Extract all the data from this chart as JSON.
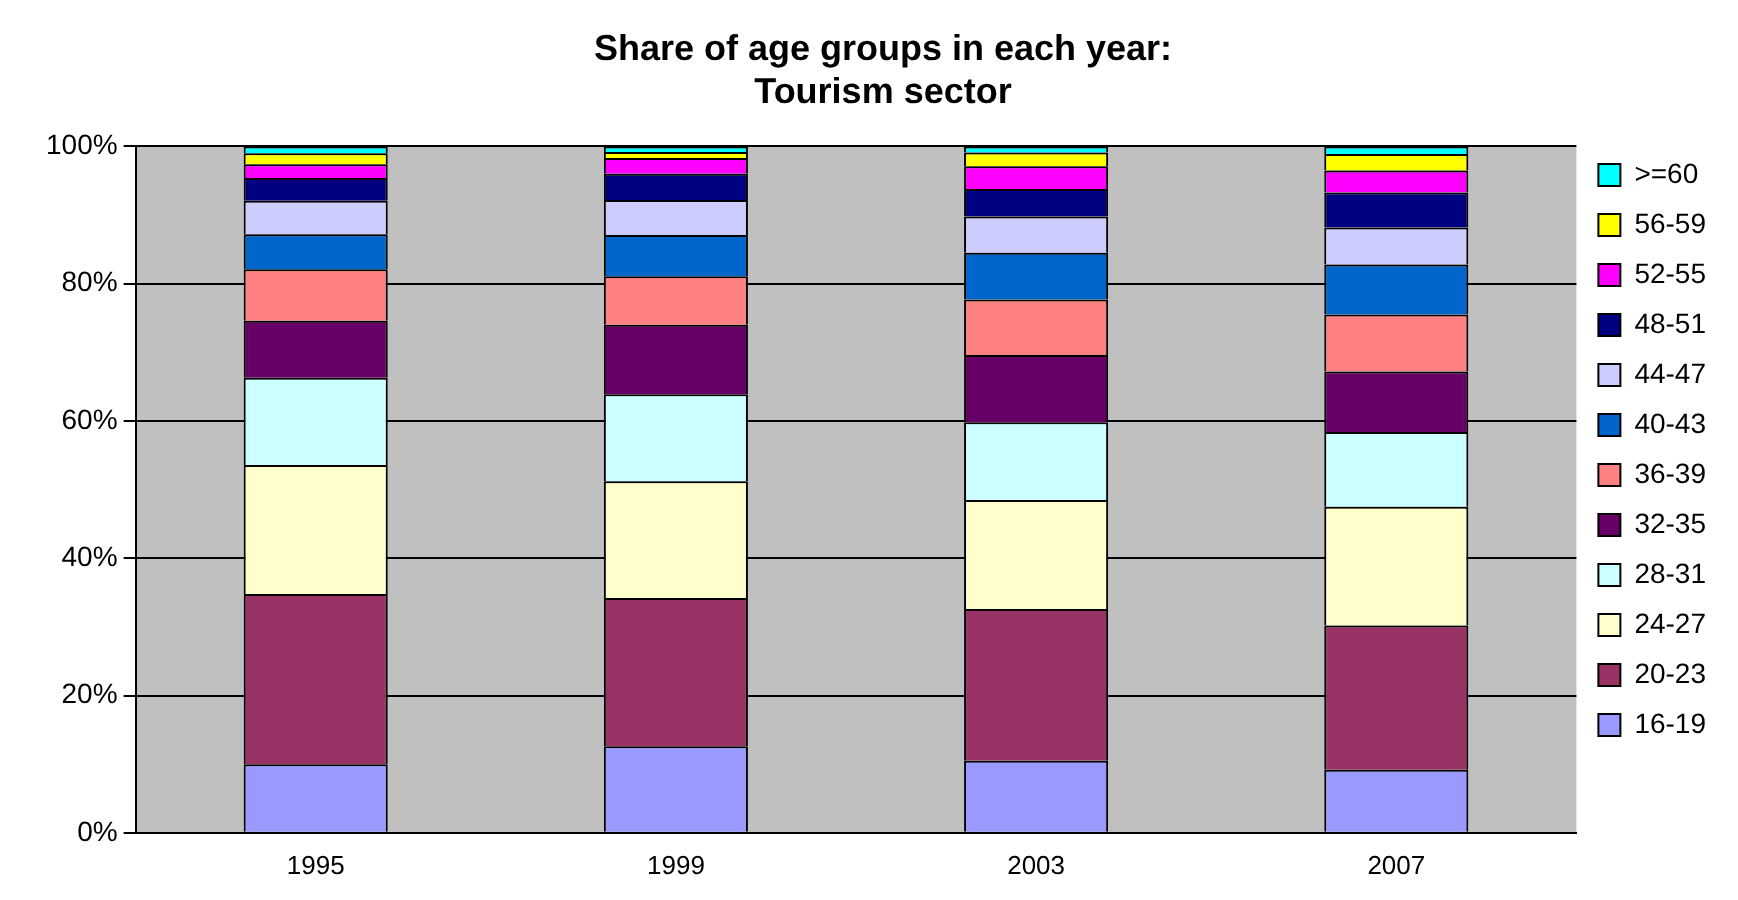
{
  "chart_data": {
    "type": "bar",
    "title": "Share of age groups in each year:\nTourism sector",
    "categories": [
      "1995",
      "1999",
      "2003",
      "2007"
    ],
    "stacked": true,
    "ylim": [
      0,
      100
    ],
    "yticks": [
      {
        "value": 0,
        "label": "0%"
      },
      {
        "value": 20,
        "label": "20%"
      },
      {
        "value": 40,
        "label": "40%"
      },
      {
        "value": 60,
        "label": "60%"
      },
      {
        "value": 80,
        "label": "80%"
      },
      {
        "value": 100,
        "label": "100%"
      }
    ],
    "grid": "y",
    "legend": "right",
    "series": [
      {
        "name": "16-19",
        "color": "#9999ff",
        "values": [
          10,
          12.6,
          10.5,
          9.2
        ]
      },
      {
        "name": "20-23",
        "color": "#993366",
        "values": [
          24.8,
          21.6,
          22.1,
          21.0
        ]
      },
      {
        "name": "24-27",
        "color": "#ffffcc",
        "values": [
          18.8,
          17.0,
          15.9,
          17.3
        ]
      },
      {
        "name": "28-31",
        "color": "#ccffff",
        "values": [
          12.7,
          12.7,
          11.3,
          10.9
        ]
      },
      {
        "name": "32-35",
        "color": "#660066",
        "values": [
          8.3,
          10.1,
          9.8,
          8.8
        ]
      },
      {
        "name": "36-39",
        "color": "#ff8080",
        "values": [
          7.5,
          7.1,
          8.1,
          8.3
        ]
      },
      {
        "name": "40-43",
        "color": "#0066cc",
        "values": [
          5.1,
          6.0,
          6.8,
          7.3
        ]
      },
      {
        "name": "44-47",
        "color": "#ccccff",
        "values": [
          4.9,
          5.1,
          5.3,
          5.4
        ]
      },
      {
        "name": "48-51",
        "color": "#000080",
        "values": [
          3.3,
          3.8,
          4.0,
          5.1
        ]
      },
      {
        "name": "52-55",
        "color": "#ff00ff",
        "values": [
          2.0,
          2.3,
          3.3,
          3.2
        ]
      },
      {
        "name": "56-59",
        "color": "#ffff00",
        "values": [
          1.6,
          0.9,
          2.0,
          2.4
        ]
      },
      {
        "name": ">=60",
        "color": "#00ffff",
        "values": [
          1.0,
          0.8,
          0.9,
          1.1
        ]
      }
    ]
  }
}
